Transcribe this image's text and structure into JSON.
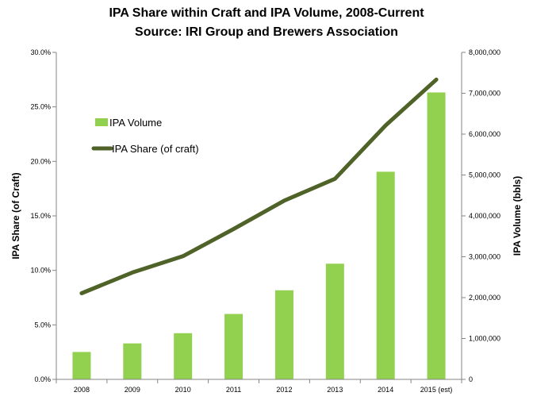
{
  "chart_data": {
    "type": "bar+line",
    "title": "IPA Share within Craft and IPA Volume, 2008-Current",
    "subtitle": "Source: IRI Group and Brewers Association",
    "categories": [
      "2008",
      "2009",
      "2010",
      "2011",
      "2012",
      "2013",
      "2014",
      "2015 (est)"
    ],
    "series": [
      {
        "name": "IPA Volume",
        "type": "bar",
        "axis": "right",
        "color": "#92d050",
        "values": [
          670000,
          880000,
          1130000,
          1600000,
          2180000,
          2830000,
          5080000,
          7020000
        ]
      },
      {
        "name": "IPA Share (of craft)",
        "type": "line",
        "axis": "left",
        "color": "#4f6228",
        "values": [
          7.9,
          9.8,
          11.3,
          13.8,
          16.4,
          18.4,
          23.3,
          27.5
        ]
      }
    ],
    "left_axis": {
      "label": "IPA Share (of Craft)",
      "ylim": [
        0,
        30
      ],
      "ticks": [
        0,
        5,
        10,
        15,
        20,
        25,
        30
      ],
      "tick_labels": [
        "0.0%",
        "5.0%",
        "10.0%",
        "15.0%",
        "20.0%",
        "25.0%",
        "30.0%"
      ]
    },
    "right_axis": {
      "label": "IPA Volume (bbls)",
      "ylim": [
        0,
        8000000
      ],
      "ticks": [
        0,
        1000000,
        2000000,
        3000000,
        4000000,
        5000000,
        6000000,
        7000000,
        8000000
      ],
      "tick_labels": [
        "0",
        "1,000,000",
        "2,000,000",
        "3,000,000",
        "4,000,000",
        "5,000,000",
        "6,000,000",
        "7,000,000",
        "8,000,000"
      ]
    },
    "grid": false,
    "legend_position": "upper-left inside plot"
  }
}
